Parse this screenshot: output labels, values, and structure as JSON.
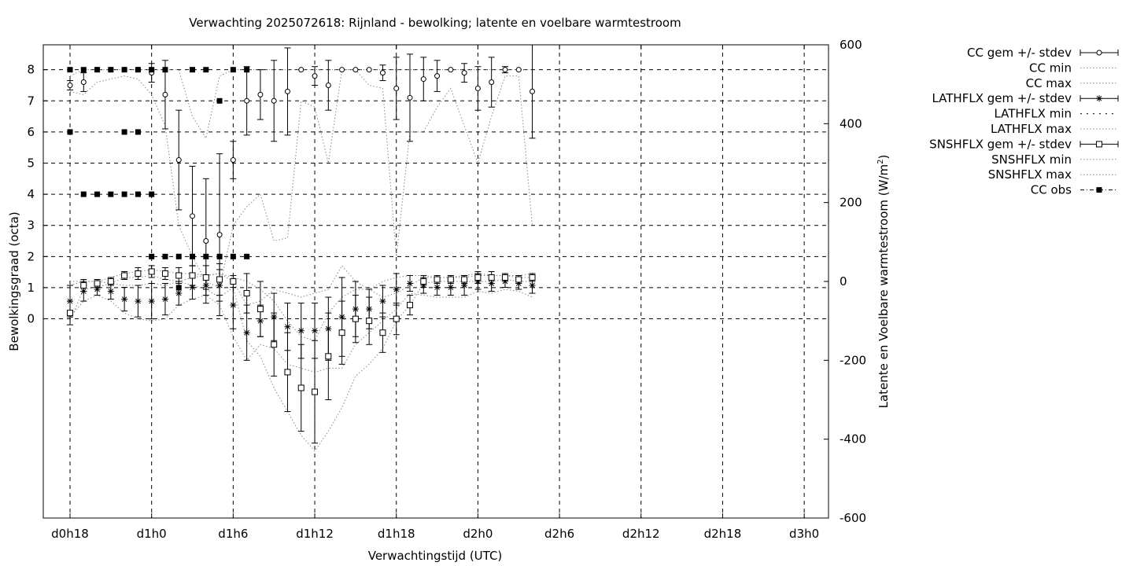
{
  "chart_data": {
    "type": "scatter",
    "title": "Verwachting 2025072618: Rijnland - bewolking; latente en voelbare warmtestroom",
    "xlabel": "Verwachtingstijd (UTC)",
    "ylabel": "Bewolkingsgraad (octa)",
    "y2label_prefix": "Latente en Voelbare warmtestroom (W/m",
    "y2label_exp": "2",
    "y2label_suffix": ")",
    "x_ticks": [
      "d0h18",
      "d1h0",
      "d1h6",
      "d1h12",
      "d1h18",
      "d2h0",
      "d2h6",
      "d2h12",
      "d2h18",
      "d3h0"
    ],
    "y_ticks": [
      "0",
      "1",
      "2",
      "3",
      "4",
      "5",
      "6",
      "7",
      "8"
    ],
    "y2_ticks": [
      "-600",
      "-400",
      "-200",
      "0",
      "200",
      "400",
      "600"
    ],
    "ylim": [
      -6.4,
      8.8
    ],
    "y2lim": [
      -600,
      600
    ],
    "xlim_hours": [
      16,
      52.5
    ],
    "legend": [
      "CC gem +/- stdev",
      "CC min",
      "CC max",
      "LATHFLX gem +/- stdev",
      "LATHFLX min",
      "LATHFLX max",
      "SNSHFLX gem +/- stdev",
      "SNSHFLX min",
      "SNSHFLX max",
      "CC obs"
    ],
    "grid": true,
    "legend_position": "outside-right",
    "series": [
      {
        "key": "cc",
        "x": [
          18,
          19,
          20,
          21,
          22,
          23,
          24,
          25,
          26,
          27,
          28,
          29,
          30,
          31,
          32,
          33,
          34,
          35,
          36,
          37,
          38,
          39,
          40,
          41,
          42,
          43,
          44,
          45,
          46,
          47,
          48,
          49,
          50,
          51,
          52
        ],
        "mean": [
          7.5,
          7.6,
          8.0,
          8.0,
          8.0,
          8.0,
          7.9,
          7.2,
          5.1,
          3.3,
          2.5,
          2.7,
          5.1,
          7.0,
          7.2,
          7.0,
          7.3,
          8.0,
          7.8,
          7.5,
          8.0,
          8.0,
          8.0,
          7.9,
          7.4,
          7.1,
          7.7,
          7.8,
          8.0,
          7.9,
          7.4,
          7.6,
          8.0,
          8.0,
          7.3
        ],
        "sd": [
          0.15,
          0.3,
          0.0,
          0.0,
          0.0,
          0.0,
          0.3,
          1.1,
          1.6,
          1.6,
          2.0,
          2.6,
          0.6,
          1.1,
          0.8,
          1.3,
          1.4,
          0.0,
          0.3,
          0.8,
          0.0,
          0.0,
          0.0,
          0.25,
          1.0,
          1.4,
          0.7,
          0.5,
          0.0,
          0.3,
          0.7,
          0.8,
          0.1,
          0.0,
          1.5
        ]
      },
      {
        "key": "cc_min",
        "x": [
          18,
          19,
          20,
          21,
          22,
          23,
          24,
          25,
          26,
          27,
          28,
          29,
          30,
          31,
          32,
          33,
          34,
          35,
          36,
          37,
          38,
          39,
          40,
          41,
          42,
          43,
          44,
          45,
          46,
          47,
          48,
          49,
          50,
          51,
          52
        ],
        "values": [
          7.3,
          7.2,
          7.6,
          7.7,
          7.8,
          7.7,
          7.2,
          6.2,
          3.0,
          2.0,
          1.2,
          1.0,
          3.0,
          3.6,
          4.0,
          2.5,
          2.6,
          7.0,
          6.8,
          5.0,
          8.0,
          8.0,
          7.5,
          7.4,
          2.0,
          6.0,
          6.0,
          6.8,
          7.4,
          6.2,
          5.0,
          6.5,
          7.8,
          7.8,
          3.0
        ]
      },
      {
        "key": "cc_max",
        "x": [
          18,
          19,
          20,
          21,
          22,
          23,
          24,
          25,
          26,
          27,
          28,
          29,
          30,
          31,
          32,
          33,
          34,
          35,
          36,
          37,
          38,
          39,
          40,
          41,
          42,
          43,
          44,
          45,
          46,
          47,
          48,
          49,
          50,
          51,
          52
        ],
        "values": [
          7.8,
          8.0,
          8.0,
          8.0,
          8.0,
          8.0,
          8.0,
          8.0,
          8.0,
          6.5,
          5.8,
          7.8,
          8.0,
          8.0,
          8.0,
          8.0,
          8.0,
          8.0,
          8.0,
          8.0,
          8.0,
          8.0,
          8.0,
          8.0,
          8.0,
          8.0,
          8.0,
          8.0,
          8.0,
          8.0,
          8.0,
          8.0,
          8.0,
          8.0,
          8.0
        ]
      },
      {
        "key": "lath",
        "x": [
          18,
          19,
          20,
          21,
          22,
          23,
          24,
          25,
          26,
          27,
          28,
          29,
          30,
          31,
          32,
          33,
          34,
          35,
          36,
          37,
          38,
          39,
          40,
          41,
          42,
          43,
          44,
          45,
          46,
          47,
          48,
          49,
          50,
          51,
          52
        ],
        "mean": [
          -50,
          -25,
          -20,
          -25,
          -45,
          -50,
          -50,
          -45,
          -30,
          -15,
          -10,
          -10,
          -60,
          -130,
          -100,
          -90,
          -115,
          -125,
          -125,
          -120,
          -90,
          -70,
          -70,
          -50,
          -20,
          -5,
          -10,
          -15,
          -15,
          -10,
          0,
          -5,
          0,
          -5,
          -10
        ],
        "sd": [
          40,
          25,
          15,
          20,
          30,
          40,
          45,
          40,
          30,
          30,
          25,
          40,
          60,
          70,
          40,
          60,
          60,
          70,
          70,
          80,
          100,
          70,
          50,
          40,
          40,
          20,
          20,
          20,
          20,
          25,
          20,
          20,
          15,
          15,
          20
        ]
      },
      {
        "key": "lath_min",
        "x": [
          18,
          19,
          20,
          21,
          22,
          23,
          24,
          25,
          26,
          27,
          28,
          29,
          30,
          31,
          32,
          33,
          34,
          35,
          36,
          37,
          38,
          39,
          40,
          41,
          42,
          43,
          44,
          45,
          46,
          47,
          48,
          49,
          50,
          51,
          52
        ],
        "values": [
          -90,
          -50,
          -35,
          -50,
          -80,
          -95,
          -100,
          -95,
          -60,
          -45,
          -35,
          -60,
          -140,
          -200,
          -160,
          -170,
          -210,
          -220,
          -230,
          -220,
          -220,
          -160,
          -130,
          -100,
          -70,
          -30,
          -35,
          -40,
          -40,
          -40,
          -25,
          -30,
          -20,
          -25,
          -40
        ]
      },
      {
        "key": "lath_max",
        "x": [
          18,
          19,
          20,
          21,
          22,
          23,
          24,
          25,
          26,
          27,
          28,
          29,
          30,
          31,
          32,
          33,
          34,
          35,
          36,
          37,
          38,
          39,
          40,
          41,
          42,
          43,
          44,
          45,
          46,
          47,
          48,
          49,
          50,
          51,
          52
        ],
        "values": [
          -10,
          0,
          0,
          -5,
          -10,
          -10,
          -5,
          -10,
          0,
          10,
          15,
          20,
          0,
          -60,
          -50,
          -20,
          -30,
          -40,
          -30,
          -20,
          40,
          0,
          -20,
          0,
          10,
          15,
          15,
          10,
          10,
          15,
          20,
          15,
          15,
          10,
          10
        ]
      },
      {
        "key": "snsh",
        "x": [
          18,
          19,
          20,
          21,
          22,
          23,
          24,
          25,
          26,
          27,
          28,
          29,
          30,
          31,
          32,
          33,
          34,
          35,
          36,
          37,
          38,
          39,
          40,
          41,
          42,
          43,
          44,
          45,
          46,
          47,
          48,
          49,
          50,
          51,
          52
        ],
        "mean": [
          -80,
          -10,
          -5,
          0,
          15,
          20,
          25,
          20,
          15,
          15,
          10,
          5,
          0,
          -30,
          -70,
          -160,
          -230,
          -270,
          -280,
          -190,
          -130,
          -95,
          -100,
          -130,
          -95,
          -60,
          0,
          5,
          5,
          5,
          10,
          10,
          10,
          5,
          10
        ],
        "sd": [
          30,
          15,
          10,
          10,
          10,
          15,
          15,
          15,
          20,
          25,
          30,
          40,
          15,
          50,
          70,
          80,
          100,
          110,
          130,
          110,
          80,
          60,
          60,
          50,
          40,
          25,
          15,
          10,
          10,
          10,
          15,
          15,
          10,
          10,
          10
        ]
      },
      {
        "key": "snsh_min",
        "x": [
          18,
          19,
          20,
          21,
          22,
          23,
          24,
          25,
          26,
          27,
          28,
          29,
          30,
          31,
          32,
          33,
          34,
          35,
          36,
          37,
          38,
          39,
          40,
          41,
          42,
          43,
          44,
          45,
          46,
          47,
          48,
          49,
          50,
          51,
          52
        ],
        "values": [
          -100,
          -20,
          -15,
          -5,
          10,
          10,
          15,
          5,
          0,
          -10,
          -20,
          -40,
          -15,
          -150,
          -190,
          -270,
          -330,
          -390,
          -430,
          -380,
          -320,
          -240,
          -210,
          -170,
          -100,
          -60,
          -5,
          0,
          0,
          0,
          0,
          0,
          5,
          0,
          0
        ]
      },
      {
        "key": "snsh_max",
        "x": [
          18,
          19,
          20,
          21,
          22,
          23,
          24,
          25,
          26,
          27,
          28,
          29,
          30,
          31,
          32,
          33,
          34,
          35,
          36,
          37,
          38,
          39,
          40,
          41,
          42,
          43,
          44,
          45,
          46,
          47,
          48,
          49,
          50,
          51,
          52
        ],
        "values": [
          0,
          0,
          0,
          10,
          20,
          25,
          30,
          25,
          20,
          20,
          15,
          20,
          10,
          0,
          -20,
          -50,
          -100,
          -140,
          -150,
          -80,
          -40,
          -20,
          -20,
          -40,
          -30,
          -10,
          10,
          10,
          10,
          10,
          15,
          15,
          15,
          15,
          20
        ]
      },
      {
        "key": "cc_obs",
        "points": [
          [
            18,
            8
          ],
          [
            18,
            6
          ],
          [
            19,
            8
          ],
          [
            19,
            4
          ],
          [
            20,
            8
          ],
          [
            20,
            4
          ],
          [
            21,
            8
          ],
          [
            21,
            4
          ],
          [
            22,
            8
          ],
          [
            22,
            4
          ],
          [
            22,
            6
          ],
          [
            23,
            8
          ],
          [
            23,
            6
          ],
          [
            23,
            4
          ],
          [
            24,
            8
          ],
          [
            24,
            4
          ],
          [
            24,
            2
          ],
          [
            25,
            8
          ],
          [
            25,
            2
          ],
          [
            26,
            1
          ],
          [
            26,
            2
          ],
          [
            27,
            8
          ],
          [
            27,
            2
          ],
          [
            28,
            8
          ],
          [
            28,
            2
          ],
          [
            29,
            7
          ],
          [
            29,
            2
          ],
          [
            30,
            8
          ],
          [
            30,
            2
          ],
          [
            31,
            8
          ],
          [
            31,
            2
          ]
        ]
      }
    ]
  }
}
